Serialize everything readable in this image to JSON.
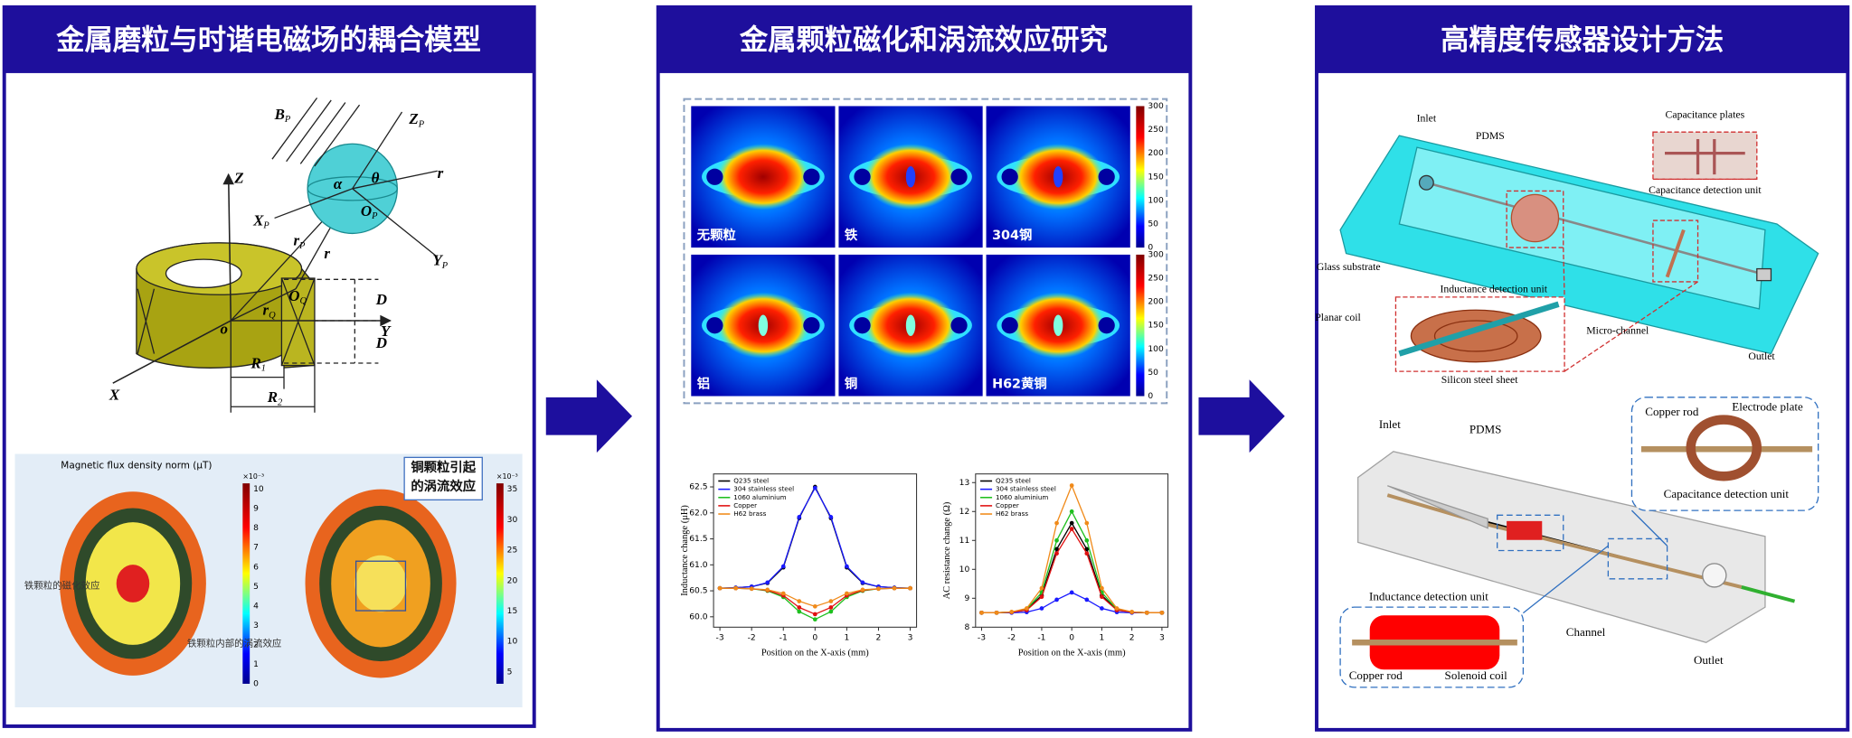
{
  "panels": [
    {
      "title": "金属磨粒与时谐电磁场的耦合模型",
      "model_labels": [
        {
          "text": "B",
          "sub": "P"
        },
        {
          "text": "Z",
          "sub": "P"
        },
        {
          "text": "θ"
        },
        {
          "text": "α"
        },
        {
          "text": "r"
        },
        {
          "text": "X",
          "sub": "P"
        },
        {
          "text": "O",
          "sub": "P"
        },
        {
          "text": "Y",
          "sub": "P"
        },
        {
          "text": "r",
          "sub": "P"
        },
        {
          "text": "r"
        },
        {
          "text": "Z"
        },
        {
          "text": "O",
          "sub": "Q"
        },
        {
          "text": "r",
          "sub": "Q"
        },
        {
          "text": "D"
        },
        {
          "text": "D"
        },
        {
          "text": "Y"
        },
        {
          "text": "o"
        },
        {
          "text": "R",
          "sub": "1"
        },
        {
          "text": "R",
          "sub": "2"
        },
        {
          "text": "X"
        }
      ],
      "simulation": {
        "title": "Magnetic flux density norm (μT)",
        "left_scale": {
          "exponent": "×10⁻³",
          "ticks": [
            0,
            1,
            2,
            3,
            4,
            5,
            6,
            7,
            8,
            9,
            10
          ]
        },
        "right_scale": {
          "exponent": "×10⁻³",
          "ticks": [
            5,
            10,
            15,
            20,
            25,
            30,
            35
          ]
        },
        "annotations": [
          "铁颗粒的磁化效应",
          "铁颗粒内部的涡流效应",
          "铜颗粒引起的涡流效应"
        ]
      }
    },
    {
      "title": "金属颗粒磁化和涡流效应研究",
      "heatmap_labels": [
        "无颗粒",
        "铁",
        "304钢",
        "铝",
        "铜",
        "H62黄铜"
      ],
      "colorbar_ticks": [
        0,
        50,
        100,
        150,
        200,
        250,
        300
      ],
      "charts": [
        {
          "type": "line",
          "xlabel": "Position on the X-axis (mm)",
          "ylabel": "Inductance change (μH)",
          "x": [
            -3,
            -2.5,
            -2,
            -1.5,
            -1,
            -0.5,
            0,
            0.5,
            1,
            1.5,
            2,
            2.5,
            3
          ],
          "xlim": [
            -3.2,
            3.2
          ],
          "xticks": [
            -3,
            -2,
            -1,
            0,
            1,
            2,
            3
          ],
          "ylim": [
            59.8,
            62.75
          ],
          "yticks": [
            {
              "value": 60,
              "label": "60.0"
            },
            60.5,
            {
              "value": 61,
              "label": "61.0"
            },
            61.5,
            {
              "value": 62,
              "label": "62.0"
            },
            62.5
          ],
          "series": [
            {
              "name": "Q235 steel",
              "color": "#000000",
              "values": [
                60.55,
                60.56,
                60.58,
                60.65,
                60.95,
                61.9,
                62.5,
                61.9,
                60.95,
                60.65,
                60.58,
                60.56,
                60.55
              ]
            },
            {
              "name": "304 stainless steel",
              "color": "#1a1aff",
              "values": [
                60.55,
                60.56,
                60.58,
                60.66,
                60.97,
                61.92,
                62.48,
                61.92,
                60.97,
                60.66,
                60.58,
                60.56,
                60.55
              ]
            },
            {
              "name": "1060 aluminium",
              "color": "#1fbf1f",
              "values": [
                60.55,
                60.55,
                60.54,
                60.5,
                60.38,
                60.1,
                59.95,
                60.1,
                60.38,
                60.5,
                60.54,
                60.55,
                60.55
              ]
            },
            {
              "name": "Copper",
              "color": "#e01010",
              "values": [
                60.55,
                60.55,
                60.54,
                60.51,
                60.41,
                60.18,
                60.05,
                60.18,
                60.41,
                60.51,
                60.54,
                60.55,
                60.55
              ]
            },
            {
              "name": "H62 brass",
              "color": "#f08a1a",
              "values": [
                60.55,
                60.55,
                60.54,
                60.52,
                60.45,
                60.3,
                60.2,
                60.3,
                60.45,
                60.52,
                60.54,
                60.55,
                60.55
              ]
            }
          ]
        },
        {
          "type": "line",
          "xlabel": "Position on the X-axis (mm)",
          "ylabel": "AC resistance change (Ω)",
          "x": [
            -3,
            -2.5,
            -2,
            -1.5,
            -1,
            -0.5,
            0,
            0.5,
            1,
            1.5,
            2,
            2.5,
            3
          ],
          "xlim": [
            -3.2,
            3.2
          ],
          "xticks": [
            -3,
            -2,
            -1,
            0,
            1,
            2,
            3
          ],
          "ylim": [
            8,
            13.3
          ],
          "yticks": [
            8,
            9,
            10,
            11,
            12,
            13
          ],
          "series": [
            {
              "name": "Q235 steel",
              "color": "#000000",
              "values": [
                8.5,
                8.5,
                8.52,
                8.6,
                9.1,
                10.7,
                11.6,
                10.7,
                9.1,
                8.6,
                8.52,
                8.5,
                8.5
              ]
            },
            {
              "name": "304 stainless steel",
              "color": "#1a1aff",
              "values": [
                8.5,
                8.5,
                8.5,
                8.52,
                8.65,
                8.95,
                9.2,
                8.95,
                8.65,
                8.52,
                8.5,
                8.5,
                8.5
              ]
            },
            {
              "name": "1060 aluminium",
              "color": "#1fbf1f",
              "values": [
                8.5,
                8.5,
                8.52,
                8.62,
                9.2,
                11,
                12,
                11,
                9.2,
                8.62,
                8.52,
                8.5,
                8.5
              ]
            },
            {
              "name": "Copper",
              "color": "#e01010",
              "values": [
                8.5,
                8.5,
                8.52,
                8.59,
                9.05,
                10.55,
                11.4,
                10.55,
                9.05,
                8.59,
                8.52,
                8.5,
                8.5
              ]
            },
            {
              "name": "H62 brass",
              "color": "#f08a1a",
              "values": [
                8.5,
                8.5,
                8.53,
                8.65,
                9.35,
                11.6,
                12.9,
                11.6,
                9.35,
                8.65,
                8.53,
                8.5,
                8.5
              ]
            }
          ]
        }
      ]
    },
    {
      "title": "高精度传感器设计方法",
      "top_labels": [
        "Inlet",
        "PDMS",
        "Capacitance plates",
        "Capacitance detection unit",
        "Glass substrate",
        "Inductance detection unit",
        "Planar coil",
        "Micro-channel",
        "Silicon steel sheet",
        "Outlet"
      ],
      "bottom_labels": [
        "Inlet",
        "PDMS",
        "Copper rod",
        "Electrode plate",
        "Capacitance detection unit",
        "Inductance detection unit",
        "Channel",
        "Copper rod",
        "Solenoid coil",
        "Outlet"
      ]
    }
  ]
}
